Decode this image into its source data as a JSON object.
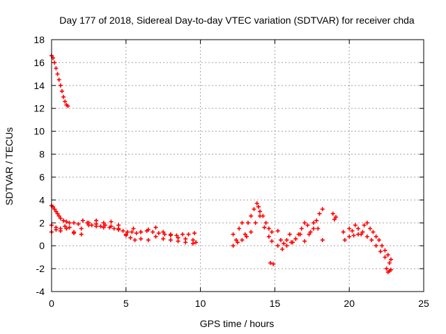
{
  "chart_data": {
    "type": "scatter",
    "title": "Day 177 of 2018, Sidereal Day-to-day VTEC variation (SDTVAR) for receiver chda",
    "xlabel": "GPS time / hours",
    "ylabel": "SDTVAR / TECUs",
    "xlim": [
      0,
      25
    ],
    "ylim": [
      -4,
      18
    ],
    "xticks": [
      0,
      5,
      10,
      15,
      20,
      25
    ],
    "yticks": [
      -4,
      -2,
      0,
      2,
      4,
      6,
      8,
      10,
      12,
      14,
      16,
      18
    ],
    "grid": true,
    "marker": "+",
    "color": "#ff0000",
    "series": [
      {
        "name": "SDTVAR",
        "x": [
          0.0,
          0.1,
          0.2,
          0.3,
          0.4,
          0.5,
          0.6,
          0.7,
          0.8,
          0.9,
          1.0,
          1.1,
          0.0,
          0.1,
          0.2,
          0.3,
          0.4,
          0.5,
          0.6,
          0.8,
          1.0,
          1.2,
          1.5,
          1.8,
          2.1,
          2.4,
          2.7,
          3.0,
          3.3,
          3.6,
          3.9,
          4.2,
          4.5,
          4.8,
          5.1,
          5.4,
          5.7,
          6.0,
          6.4,
          6.8,
          7.2,
          7.6,
          8.0,
          8.4,
          8.8,
          9.2,
          9.6,
          0.0,
          0.3,
          0.6,
          0.9,
          1.2,
          1.5,
          2.0,
          2.5,
          3.0,
          3.5,
          4.0,
          4.5,
          5.0,
          5.3,
          5.6,
          6.0,
          6.5,
          7.0,
          7.5,
          8.0,
          8.5,
          9.0,
          9.5,
          9.7,
          0.0,
          0.3,
          0.6,
          1.0,
          1.5,
          2.0,
          2.5,
          3.0,
          3.5,
          4.0,
          4.5,
          5.0,
          5.5,
          6.0,
          6.5,
          7.0,
          7.5,
          8.0,
          8.5,
          9.0,
          9.5,
          12.2,
          12.4,
          12.6,
          12.8,
          13.0,
          13.2,
          13.4,
          13.6,
          13.8,
          13.9,
          14.0,
          14.2,
          14.4,
          14.6,
          14.8,
          12.2,
          12.5,
          12.8,
          13.1,
          13.4,
          13.7,
          14.0,
          14.3,
          14.6,
          14.8,
          14.7,
          14.9,
          15.2,
          15.4,
          15.6,
          15.8,
          16.0,
          16.2,
          16.4,
          16.6,
          16.8,
          17.0,
          17.2,
          17.4,
          17.6,
          17.8,
          18.0,
          18.2,
          15.2,
          15.5,
          15.8,
          16.1,
          16.4,
          16.7,
          17.0,
          17.3,
          17.6,
          17.9,
          18.2,
          18.9,
          19.0,
          19.1,
          19.6,
          19.7,
          20.0,
          20.2,
          20.4,
          20.6,
          20.8,
          21.0,
          21.2,
          21.4,
          21.6,
          21.8,
          22.0,
          22.2,
          22.4,
          22.6,
          22.8,
          20.0,
          20.3,
          20.6,
          20.9,
          21.2,
          21.5,
          21.8,
          22.1,
          22.4,
          22.7,
          22.5,
          22.6,
          22.7,
          22.8
        ],
        "y": [
          16.6,
          16.4,
          16.0,
          15.5,
          15.0,
          14.5,
          14.0,
          13.5,
          13.0,
          12.6,
          12.3,
          12.2,
          3.5,
          3.4,
          3.2,
          3.0,
          2.8,
          2.6,
          2.4,
          2.2,
          2.1,
          2.0,
          2.0,
          1.9,
          2.2,
          2.0,
          1.8,
          1.9,
          1.7,
          1.8,
          1.6,
          1.5,
          1.4,
          1.3,
          1.2,
          1.2,
          1.1,
          1.2,
          1.3,
          1.2,
          1.1,
          1.0,
          1.0,
          0.9,
          1.0,
          1.0,
          1.1,
          1.8,
          1.6,
          1.5,
          1.7,
          1.6,
          1.2,
          1.5,
          1.8,
          1.7,
          1.6,
          1.7,
          1.5,
          0.9,
          0.7,
          0.5,
          0.6,
          0.5,
          0.8,
          0.6,
          0.5,
          0.4,
          0.3,
          0.2,
          0.3,
          1.2,
          1.4,
          1.3,
          1.5,
          1.1,
          1.0,
          2.0,
          2.2,
          2.0,
          2.1,
          1.8,
          1.0,
          1.5,
          1.2,
          1.4,
          1.6,
          1.2,
          0.9,
          0.7,
          0.6,
          0.5,
          1.0,
          0.5,
          1.5,
          2.0,
          1.0,
          2.0,
          2.6,
          3.2,
          3.7,
          3.4,
          3.0,
          2.6,
          2.0,
          1.5,
          1.2,
          0.0,
          0.3,
          0.5,
          0.8,
          1.2,
          2.0,
          2.6,
          1.6,
          0.8,
          0.4,
          -1.5,
          -1.6,
          1.3,
          0.5,
          0.2,
          0.5,
          1.0,
          0.3,
          0.6,
          1.0,
          1.5,
          2.0,
          1.8,
          1.2,
          1.5,
          2.2,
          2.8,
          3.2,
          0.0,
          -0.3,
          0.0,
          0.3,
          0.6,
          1.0,
          0.4,
          1.0,
          2.0,
          1.5,
          0.5,
          2.8,
          2.3,
          2.5,
          1.2,
          0.5,
          1.5,
          1.3,
          1.8,
          1.5,
          1.0,
          1.8,
          2.0,
          1.5,
          1.2,
          0.8,
          0.5,
          0.0,
          -0.4,
          -0.8,
          -1.2,
          0.8,
          0.9,
          1.0,
          1.2,
          0.8,
          0.5,
          0.0,
          -0.5,
          -1.0,
          -1.5,
          -2.0,
          -2.3,
          -2.2,
          -2.1
        ]
      }
    ]
  }
}
